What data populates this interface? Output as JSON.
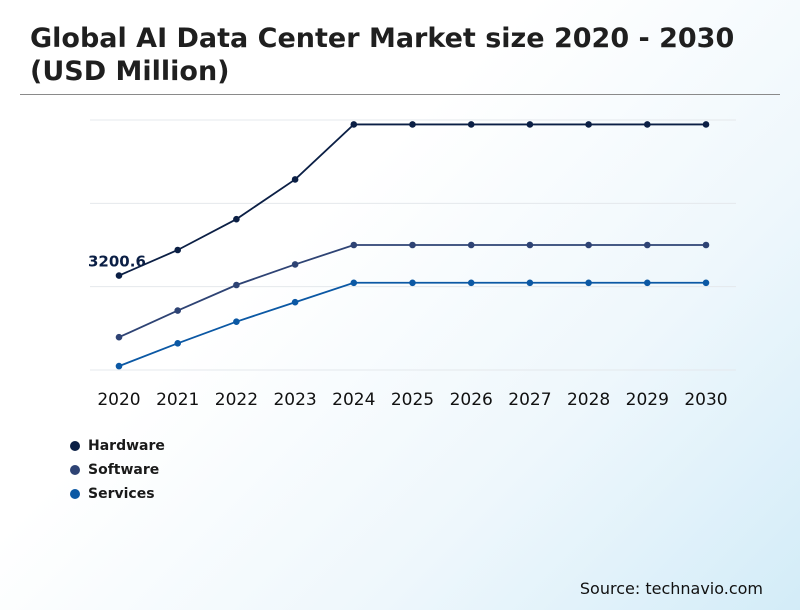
{
  "title": "Global AI Data Center Market size 2020 - 2030 (USD Million)",
  "source": "Source: technavio.com",
  "chart_data": {
    "type": "line",
    "x": [
      "2020",
      "2021",
      "2022",
      "2023",
      "2024",
      "2025",
      "2026",
      "2027",
      "2028",
      "2029",
      "2030"
    ],
    "series": [
      {
        "name": "Hardware",
        "color": "#0b1f45",
        "values": [
          3200.6,
          3660,
          4215,
          4930,
          5920,
          5920,
          5920,
          5920,
          5920,
          5920,
          5920
        ]
      },
      {
        "name": "Software",
        "color": "#2e4374",
        "values": [
          2090,
          2570,
          3030,
          3400,
          3750,
          3750,
          3750,
          3750,
          3750,
          3750,
          3750
        ]
      },
      {
        "name": "Services",
        "color": "#0b58a4",
        "values": [
          1570,
          1980,
          2370,
          2720,
          3070,
          3070,
          3070,
          3070,
          3070,
          3070,
          3070
        ]
      }
    ],
    "annotations": [
      {
        "series": "Hardware",
        "x": "2020",
        "text": "3200.6"
      }
    ],
    "ylim": [
      1500,
      6000
    ],
    "grid": true,
    "legend": "bottom-left"
  }
}
